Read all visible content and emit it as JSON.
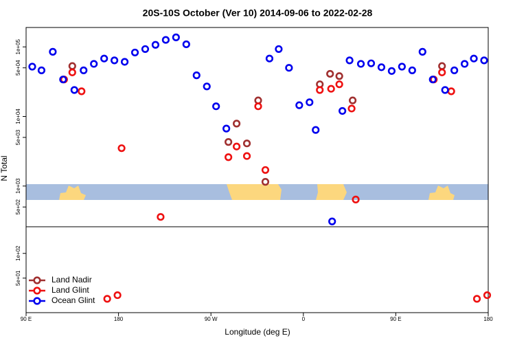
{
  "chart_data": [
    {
      "type": "scatter",
      "title": "20S-10S October (Ver 10)   2014-09-06 to 2022-02-28",
      "ylabel": "N Total",
      "log_y": true,
      "xlim": [
        90,
        540
      ],
      "ylim": [
        260,
        190000
      ],
      "yticks": [
        {
          "value": 100000,
          "label": "1e+05"
        },
        {
          "value": 50000,
          "label": "5e+04"
        },
        {
          "value": 10000,
          "label": "1e+04"
        },
        {
          "value": 5000,
          "label": "5e+03"
        },
        {
          "value": 1000,
          "label": "1e+03"
        },
        {
          "value": 500,
          "label": "5e+02"
        }
      ],
      "series": [
        {
          "color": "#a03030",
          "x": [
            135,
            287,
            295,
            305,
            316,
            323,
            376,
            386,
            395,
            408,
            495
          ],
          "values": [
            53000,
            4300,
            7900,
            4100,
            17000,
            1150,
            29000,
            41000,
            38000,
            17000,
            53000
          ]
        },
        {
          "color": "#ee1111",
          "x": [
            127,
            135,
            144,
            183,
            221,
            287,
            295,
            305,
            316,
            323,
            376,
            387,
            395,
            407,
            411,
            487,
            495,
            504
          ],
          "values": [
            34000,
            43000,
            23000,
            3500,
            360,
            2600,
            3700,
            2700,
            14000,
            1700,
            24000,
            25000,
            29000,
            13000,
            640,
            34000,
            43000,
            23000
          ]
        },
        {
          "color": "#0000ee",
          "x": [
            96,
            105,
            116,
            126,
            137,
            146,
            156,
            166,
            176,
            186,
            196,
            206,
            216,
            226,
            236,
            246,
            256,
            266,
            275,
            285,
            327,
            336,
            346,
            356,
            366,
            372,
            388,
            398,
            405,
            416,
            426,
            436,
            446,
            456,
            466,
            476,
            486,
            498,
            507,
            517,
            526,
            536
          ],
          "values": [
            52000,
            46000,
            85000,
            34000,
            24000,
            46000,
            57000,
            68000,
            64000,
            61000,
            83000,
            93000,
            107000,
            126000,
            137000,
            109000,
            39000,
            27000,
            14000,
            6700,
            68000,
            93000,
            50000,
            14500,
            16000,
            6400,
            310,
            12000,
            64000,
            57000,
            58000,
            51000,
            45000,
            52000,
            46000,
            85000,
            34000,
            24000,
            46000,
            57000,
            68000,
            64000
          ]
        }
      ]
    },
    {
      "type": "scatter",
      "xlabel": "Longitude (deg E)",
      "log_y": true,
      "xlim": [
        90,
        540
      ],
      "ylim": [
        19,
        211
      ],
      "legend": "lower left",
      "xticks": [
        {
          "value": 90,
          "label": "90 E"
        },
        180,
        {
          "value": 270,
          "label": "90 W"
        },
        {
          "value": 360,
          "label": "0"
        },
        {
          "value": 450,
          "label": "90 E"
        },
        {
          "value": 540,
          "label": "180"
        }
      ],
      "yticks": [
        {
          "value": 100,
          "label": "1e+02"
        },
        {
          "value": 50,
          "label": "5e+01"
        }
      ],
      "series": [
        {
          "name": "Land Nadir",
          "color": "#a03030",
          "x": [],
          "values": []
        },
        {
          "name": "Land Glint",
          "color": "#ee1111",
          "x": [
            169,
            179,
            529,
            539
          ],
          "values": [
            28,
            31,
            28,
            31
          ]
        },
        {
          "name": "Ocean Glint",
          "color": "#0000ee",
          "x": [],
          "values": []
        }
      ]
    }
  ]
}
